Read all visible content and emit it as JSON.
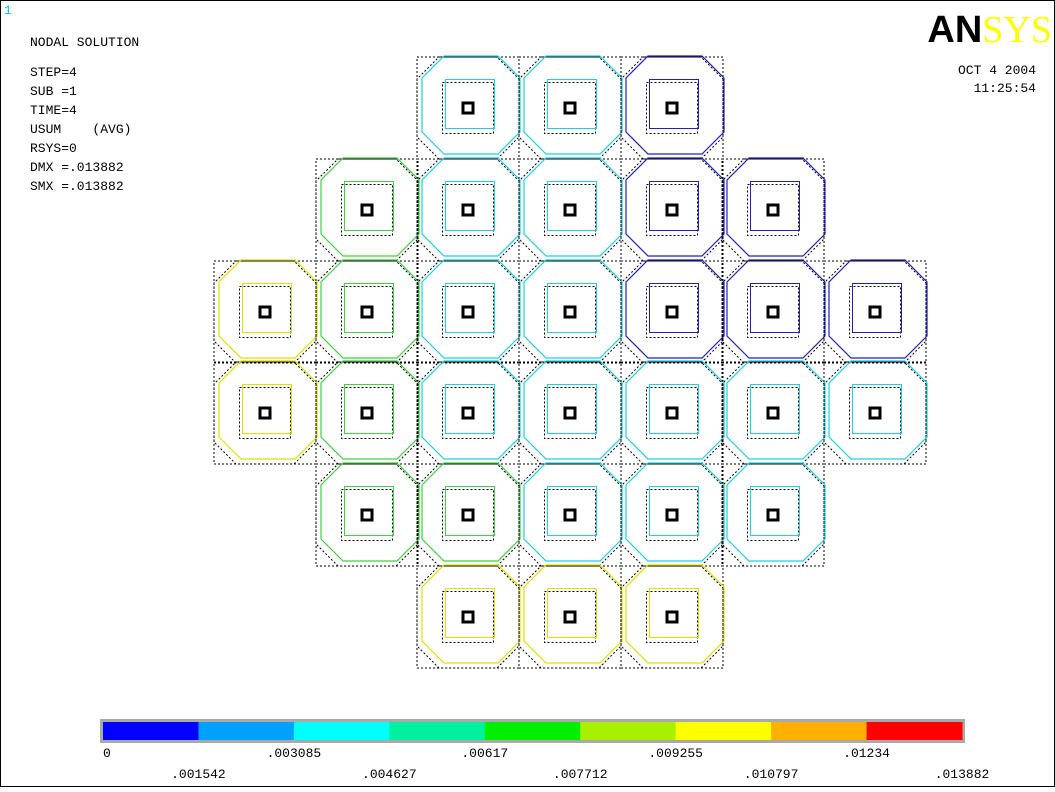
{
  "window_number": "1",
  "header": {
    "title": "NODAL SOLUTION",
    "info": [
      "STEP=4",
      "SUB =1",
      "TIME=4",
      "USUM    (AVG)",
      "RSYS=0",
      "DMX =.013882",
      "SMX =.013882"
    ]
  },
  "logo": {
    "bold": "AN",
    "light": "SYS"
  },
  "stamp": {
    "date": "OCT  4 2004",
    "time": "11:25:54"
  },
  "legend": {
    "colors": [
      "#0000ff",
      "#00a0ff",
      "#00ffff",
      "#00f0a0",
      "#00ee00",
      "#a8f000",
      "#ffff00",
      "#ffb000",
      "#ff0000"
    ],
    "labels": [
      "0",
      ".001542",
      ".003085",
      ".004627",
      ".00617",
      ".007712",
      ".009255",
      ".010797",
      ".01234",
      ".013882"
    ]
  }
}
